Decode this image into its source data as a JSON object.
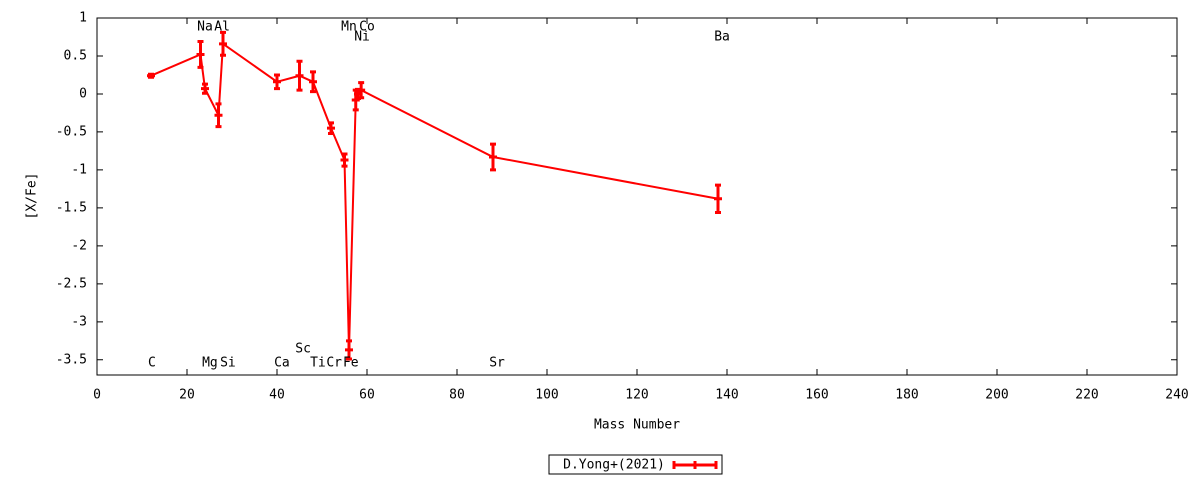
{
  "chart_data": {
    "type": "line",
    "x_label": "Mass Number",
    "y_label": "[X/Fe]",
    "xlim": [
      0,
      240
    ],
    "ylim": [
      -3.7,
      1
    ],
    "xticks": [
      0,
      20,
      40,
      60,
      80,
      100,
      120,
      140,
      160,
      180,
      200,
      220,
      240
    ],
    "yticks": [
      1,
      0.5,
      0,
      -0.5,
      -1,
      -1.5,
      -2,
      -2.5,
      -3,
      -3.5
    ],
    "series": [
      {
        "name": "D.Yong+(2021)",
        "color": "#ff0000",
        "x": [
          12,
          23,
          24,
          27,
          28,
          40,
          45,
          48,
          52,
          55,
          56,
          57.5,
          58,
          58.7,
          88,
          138
        ],
        "values": [
          0.24,
          0.52,
          0.07,
          -0.28,
          0.66,
          0.16,
          0.24,
          0.16,
          -0.45,
          -0.87,
          -3.37,
          -0.08,
          0,
          0.05,
          -0.83,
          -1.38
        ],
        "errors": [
          0.02,
          0.17,
          0.06,
          0.15,
          0.15,
          0.09,
          0.19,
          0.13,
          0.07,
          0.08,
          0.12,
          0.13,
          0.06,
          0.1,
          0.17,
          0.18
        ]
      }
    ],
    "annotations": [
      {
        "text": "C",
        "x": 12.2,
        "y": -3.54
      },
      {
        "text": "Na",
        "x": 24,
        "y": 0.88
      },
      {
        "text": "Al",
        "x": 27.8,
        "y": 0.88
      },
      {
        "text": "Mg",
        "x": 25.1,
        "y": -3.54
      },
      {
        "text": "Si",
        "x": 29.1,
        "y": -3.54
      },
      {
        "text": "Ca",
        "x": 41.1,
        "y": -3.54
      },
      {
        "text": "Sc",
        "x": 45.8,
        "y": -3.36
      },
      {
        "text": "Ti",
        "x": 49.1,
        "y": -3.54
      },
      {
        "text": "Cr",
        "x": 52.7,
        "y": -3.54
      },
      {
        "text": "Fe",
        "x": 56.4,
        "y": -3.54
      },
      {
        "text": "Mn",
        "x": 56,
        "y": 0.88
      },
      {
        "text": "Co",
        "x": 60,
        "y": 0.88
      },
      {
        "text": "Ni",
        "x": 58.9,
        "y": 0.75
      },
      {
        "text": "Sr",
        "x": 88.9,
        "y": -3.54
      },
      {
        "text": "Ba",
        "x": 138.9,
        "y": 0.75
      }
    ]
  }
}
